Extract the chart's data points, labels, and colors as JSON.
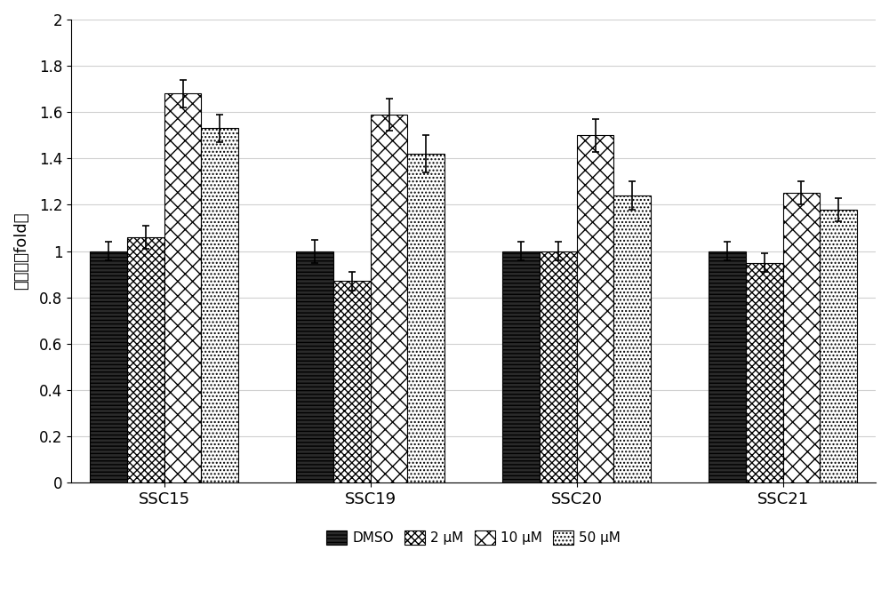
{
  "groups": [
    "SSC15",
    "SSC19",
    "SSC20",
    "SSC21"
  ],
  "series_labels": [
    "DMSO",
    "2 μM",
    "10 μM",
    "50 μM"
  ],
  "values": [
    [
      1.0,
      1.06,
      1.68,
      1.53
    ],
    [
      1.0,
      0.87,
      1.59,
      1.42
    ],
    [
      1.0,
      1.0,
      1.5,
      1.24
    ],
    [
      1.0,
      0.95,
      1.25,
      1.18
    ]
  ],
  "errors": [
    [
      0.04,
      0.05,
      0.06,
      0.06
    ],
    [
      0.05,
      0.04,
      0.07,
      0.08
    ],
    [
      0.04,
      0.04,
      0.07,
      0.06
    ],
    [
      0.04,
      0.04,
      0.05,
      0.05
    ]
  ],
  "ylim": [
    0,
    2.0
  ],
  "yticks": [
    0,
    0.2,
    0.4,
    0.6,
    0.8,
    1.0,
    1.2,
    1.4,
    1.6,
    1.8,
    2.0
  ],
  "ylabel": "生存率（fold）",
  "bar_width": 0.18,
  "background_color": "#ffffff",
  "grid_color": "#d0d0d0",
  "axis_fontsize": 13,
  "tick_fontsize": 12,
  "legend_fontsize": 11,
  "hatch_list": [
    "----",
    "xxxx",
    "xxxx",
    "...."
  ],
  "face_colors": [
    "#000000",
    "#ffffff",
    "#ffffff",
    "#ffffff"
  ],
  "hatch_colors": [
    "#000000",
    "#000000",
    "#888888",
    "#888888"
  ]
}
